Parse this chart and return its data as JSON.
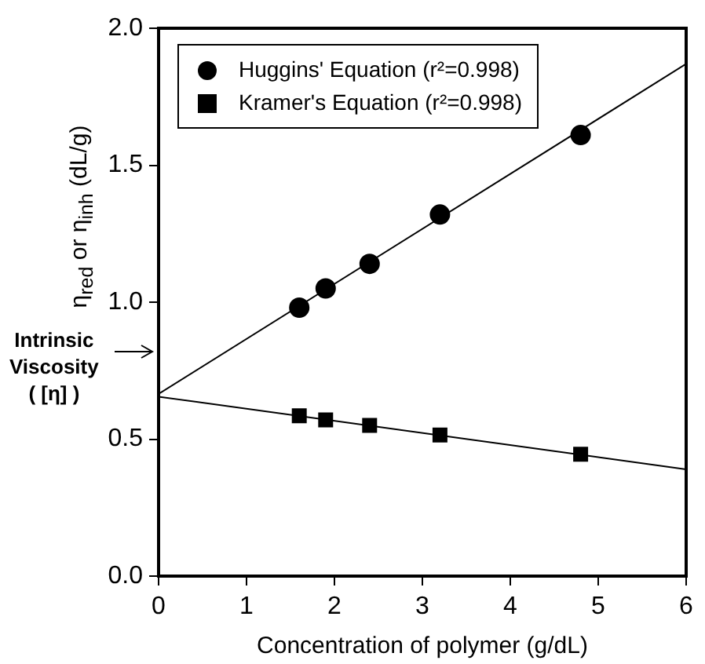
{
  "chart_data": {
    "type": "scatter",
    "xlabel": "Concentration of polymer (g/dL)",
    "ylabel": "η$_{red}$ or η$_{inh}$ (dL/g)",
    "xlim": [
      0,
      6
    ],
    "xticks": [
      0,
      1,
      2,
      3,
      4,
      5,
      6
    ],
    "ylim": [
      0,
      2
    ],
    "yticks": [
      {
        "value": 0,
        "label": "0.0"
      },
      {
        "value": 0.5,
        "label": "0.5"
      },
      {
        "value": 1,
        "label": "1.0"
      },
      {
        "value": 1.5,
        "label": "1.5"
      },
      {
        "value": 2,
        "label": "2.0"
      }
    ],
    "grid": false,
    "legend": "top left",
    "annotations": [
      "Intrinsic\nViscosity\n( [η] )"
    ],
    "series": [
      {
        "name": "Huggins' Equation (r²=0.998)",
        "color": "#000000",
        "marker": "circle",
        "x": [
          1.6,
          1.9,
          2.4,
          3.2,
          4.8
        ],
        "values": [
          0.98,
          1.05,
          1.14,
          1.32,
          1.61
        ]
      },
      {
        "name": "Kramer's Equation (r²=0.998)",
        "color": "#000000",
        "marker": "square",
        "x": [
          1.6,
          1.9,
          2.4,
          3.2,
          4.8
        ],
        "values": [
          0.585,
          0.57,
          0.55,
          0.515,
          0.445
        ]
      },
      {
        "type": "line",
        "color": "#000000",
        "marker": "none",
        "x": [
          0,
          6
        ],
        "values": [
          0.665,
          1.87
        ]
      },
      {
        "type": "line",
        "color": "#000000",
        "marker": "none",
        "x": [
          0,
          6
        ],
        "values": [
          0.655,
          0.39
        ]
      }
    ]
  }
}
